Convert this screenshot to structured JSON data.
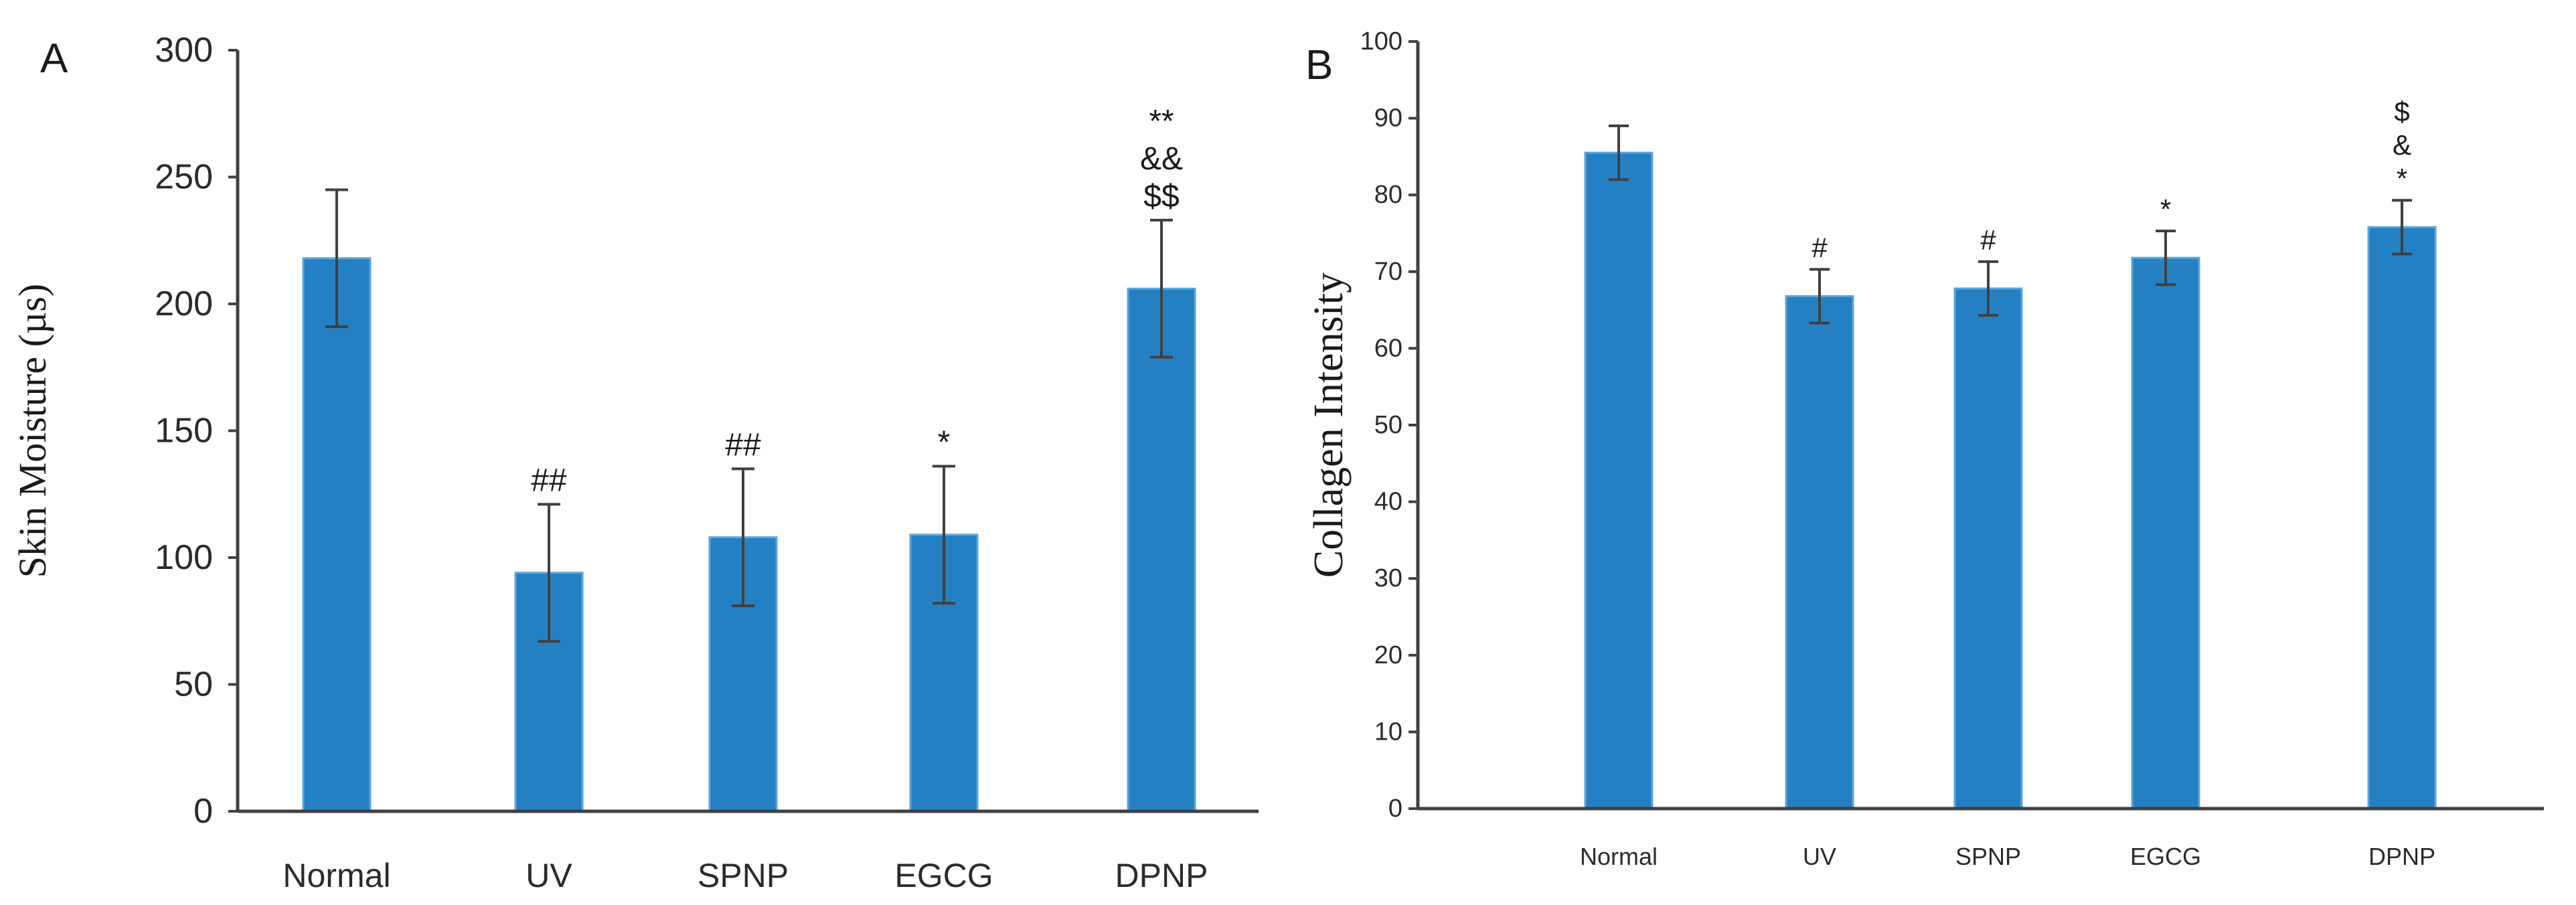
{
  "chart_data": [
    {
      "panel": "A",
      "type": "bar",
      "ylabel": "Skin Moisture (µs)",
      "xlabel": "",
      "ylim": [
        0,
        300
      ],
      "yticks": [
        0,
        50,
        100,
        150,
        200,
        250,
        300
      ],
      "categories": [
        "Normal",
        "UV",
        "SPNP",
        "EGCG",
        "DPNP"
      ],
      "values": [
        218,
        94,
        108,
        109,
        206
      ],
      "errors": [
        27,
        27,
        27,
        27,
        27
      ],
      "annotations": [
        [],
        [
          "##"
        ],
        [
          "##"
        ],
        [
          "*"
        ],
        [
          "**",
          "&&",
          "$$"
        ]
      ],
      "bar_color": "#2580c3",
      "grid": false
    },
    {
      "panel": "B",
      "type": "bar",
      "ylabel": "Collagen Intensity",
      "xlabel": "",
      "ylim": [
        0,
        100
      ],
      "yticks": [
        0,
        10,
        20,
        30,
        40,
        50,
        60,
        70,
        80,
        90,
        100
      ],
      "categories": [
        "Normal",
        "UV",
        "SPNP",
        "EGCG",
        "DPNP"
      ],
      "values": [
        85.5,
        66.8,
        67.8,
        71.8,
        75.8
      ],
      "errors": [
        3.5,
        3.5,
        3.5,
        3.5,
        3.5
      ],
      "annotations": [
        [],
        [
          "#"
        ],
        [
          "#"
        ],
        [
          "*"
        ],
        [
          "$",
          "&",
          "*"
        ]
      ],
      "bar_color": "#2580c3",
      "grid": false
    }
  ]
}
